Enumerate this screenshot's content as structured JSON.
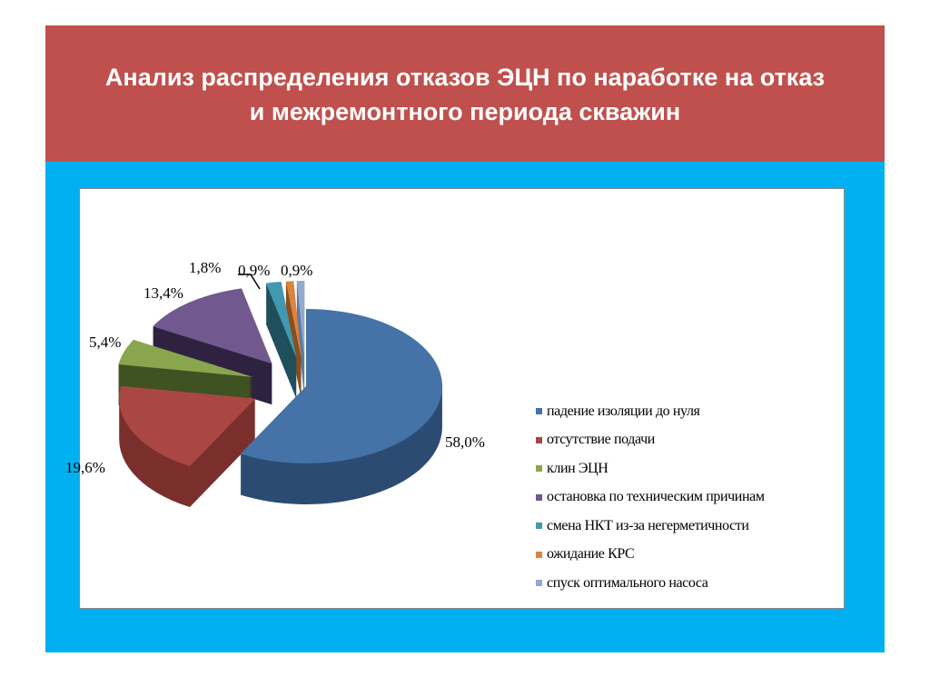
{
  "slide": {
    "title_line1": "Анализ  распределения отказов ЭЦН по наработке на отказ",
    "title_line2": "и межремонтного периода скважин",
    "title_band_color": "#C0504D",
    "background_color": "#00B0F0"
  },
  "chart_data": {
    "type": "pie",
    "style": "3d-exploded",
    "legend_position": "right",
    "categories": [
      "падение изоляции до нуля",
      "отсутствие подачи",
      "клин ЭЦН",
      "остановка по техническим причинам",
      "смена НКТ из-за негерметичности",
      "ожидание КРС",
      "спуск оптимального насоса"
    ],
    "values": [
      58.0,
      19.6,
      5.4,
      13.4,
      1.8,
      0.9,
      0.9
    ],
    "labels": [
      "58,0%",
      "19,6%",
      "5,4%",
      "13,4%",
      "1,8%",
      "0,9%",
      "0,9%"
    ],
    "colors": [
      "#4572A7",
      "#AA4643",
      "#89A54E",
      "#71588F",
      "#4198AF",
      "#DB843D",
      "#93A9CF"
    ],
    "side_colors": [
      "#2B4B72",
      "#7A2F2D",
      "#3F5222",
      "#2E2240",
      "#1F4E5C",
      "#8A4F1F",
      "#6079A0"
    ]
  }
}
